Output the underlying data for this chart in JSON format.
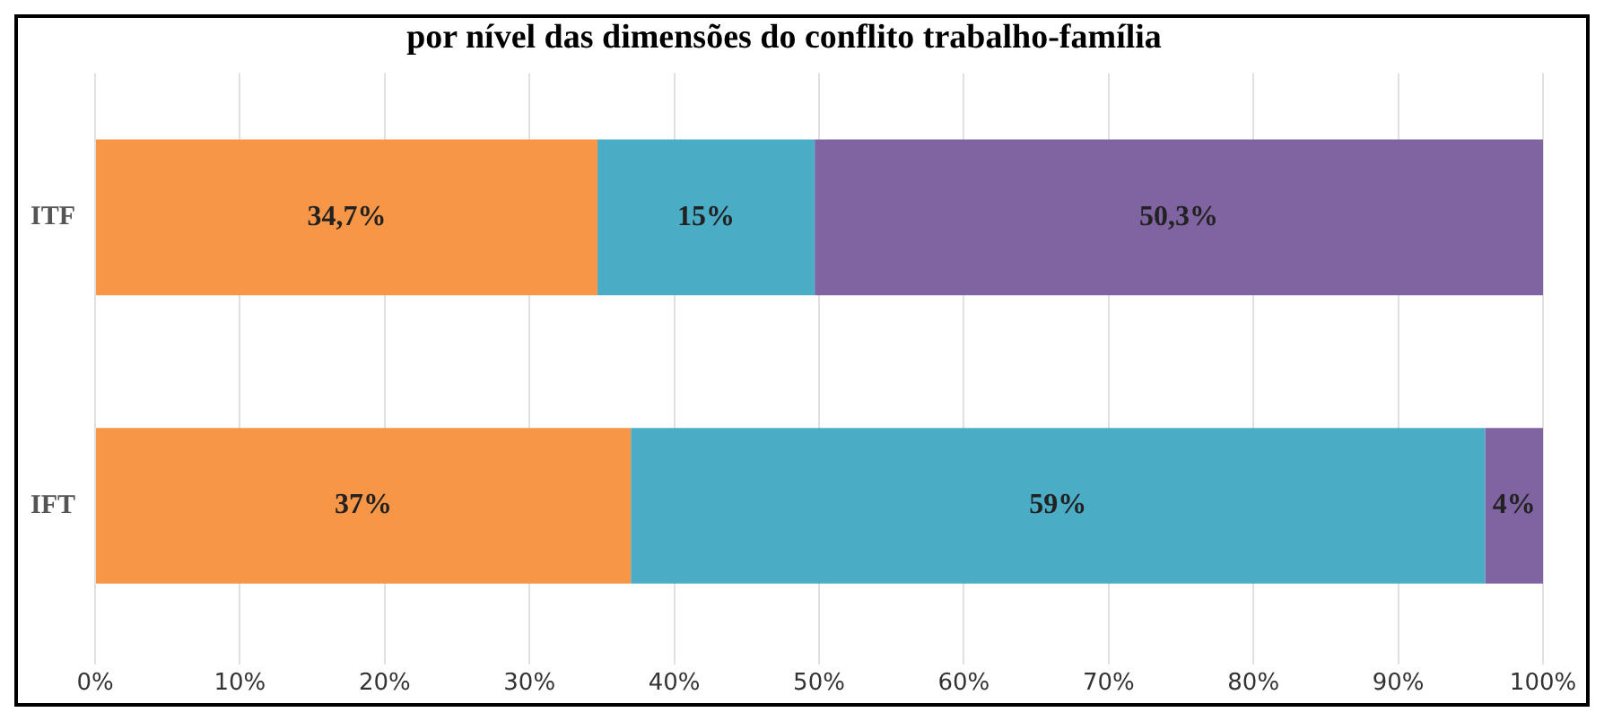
{
  "chart_data": {
    "type": "bar",
    "orientation": "horizontal",
    "stacked": true,
    "title": "por nível das dimensões do conflito trabalho-família",
    "categories": [
      "ITF",
      "IFT"
    ],
    "series": [
      {
        "color": "#f79646",
        "values": [
          34.7,
          37
        ],
        "value_labels": [
          "34,7%",
          "37%"
        ]
      },
      {
        "color": "#4bacc6",
        "values": [
          15,
          59
        ],
        "value_labels": [
          "15%",
          "59%"
        ]
      },
      {
        "color": "#8064a2",
        "values": [
          50.3,
          4
        ],
        "value_labels": [
          "50,3%",
          "4%"
        ]
      }
    ],
    "xlim": [
      0,
      100
    ],
    "xticks": [
      {
        "value": 0,
        "label": "0%"
      },
      {
        "value": 10,
        "label": "10%"
      },
      {
        "value": 20,
        "label": "20%"
      },
      {
        "value": 30,
        "label": "30%"
      },
      {
        "value": 40,
        "label": "40%"
      },
      {
        "value": 50,
        "label": "50%"
      },
      {
        "value": 60,
        "label": "60%"
      },
      {
        "value": 70,
        "label": "70%"
      },
      {
        "value": 80,
        "label": "80%"
      },
      {
        "value": 90,
        "label": "90%"
      },
      {
        "value": 100,
        "label": "100%"
      }
    ],
    "grid": "x",
    "legend": false
  }
}
